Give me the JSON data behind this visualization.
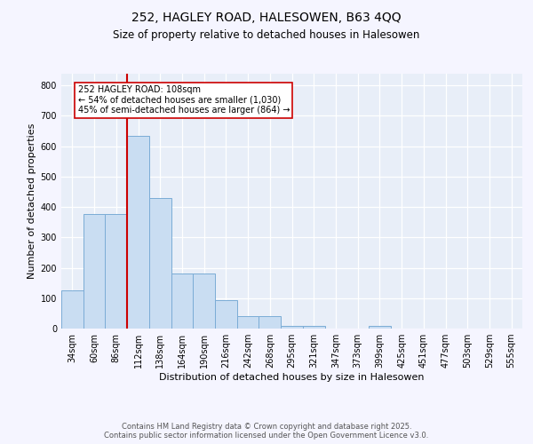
{
  "title1": "252, HAGLEY ROAD, HALESOWEN, B63 4QQ",
  "title2": "Size of property relative to detached houses in Halesowen",
  "xlabel": "Distribution of detached houses by size in Halesowen",
  "ylabel": "Number of detached properties",
  "categories": [
    "34sqm",
    "60sqm",
    "86sqm",
    "112sqm",
    "138sqm",
    "164sqm",
    "190sqm",
    "216sqm",
    "242sqm",
    "268sqm",
    "295sqm",
    "321sqm",
    "347sqm",
    "373sqm",
    "399sqm",
    "425sqm",
    "451sqm",
    "477sqm",
    "503sqm",
    "529sqm",
    "555sqm"
  ],
  "values": [
    125,
    378,
    378,
    635,
    430,
    182,
    182,
    93,
    40,
    40,
    10,
    10,
    0,
    0,
    8,
    0,
    0,
    0,
    0,
    0,
    0
  ],
  "bar_color": "#c9ddf2",
  "bar_edge_color": "#7bacd6",
  "redline_x": 2.5,
  "annotation_text": "252 HAGLEY ROAD: 108sqm\n← 54% of detached houses are smaller (1,030)\n45% of semi-detached houses are larger (864) →",
  "annotation_box_color": "#ffffff",
  "annotation_box_edge": "#cc0000",
  "redline_color": "#cc0000",
  "plot_bg_color": "#e8eef8",
  "fig_bg_color": "#f5f5ff",
  "footer_text": "Contains HM Land Registry data © Crown copyright and database right 2025.\nContains public sector information licensed under the Open Government Licence v3.0.",
  "ylim": [
    0,
    840
  ],
  "yticks": [
    0,
    100,
    200,
    300,
    400,
    500,
    600,
    700,
    800
  ],
  "title1_fontsize": 10,
  "title2_fontsize": 8.5,
  "ylabel_fontsize": 8,
  "xlabel_fontsize": 8,
  "tick_fontsize": 7,
  "footer_fontsize": 6,
  "annot_fontsize": 7
}
